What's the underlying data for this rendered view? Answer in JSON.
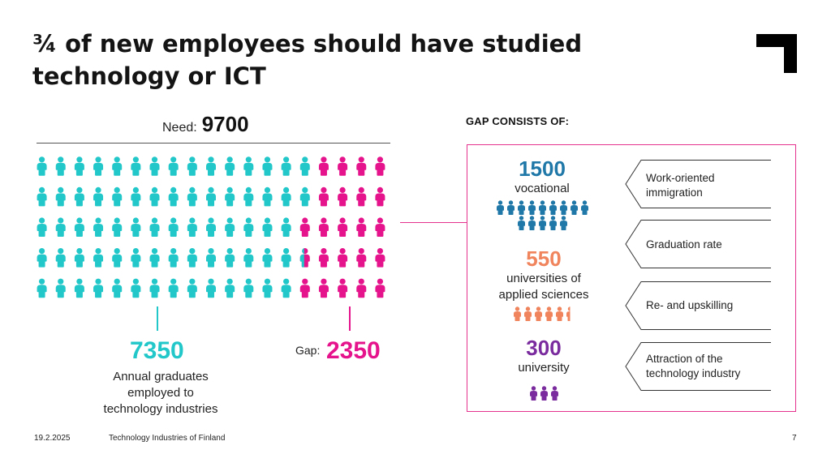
{
  "title": "¾ of new employees should have studied technology or ICT",
  "need": {
    "label": "Need:",
    "value": "9700"
  },
  "people_grid": {
    "rows": 5,
    "cols": 19,
    "primary_color": "#22c7c9",
    "gap_color": "#e6148c",
    "primary_per_row": [
      15,
      15,
      14,
      14.5,
      14
    ]
  },
  "graduates": {
    "value": "7350",
    "description": [
      "Annual graduates",
      "employed to",
      "technology industries"
    ],
    "color": "#22c7c9"
  },
  "gap": {
    "label": "Gap:",
    "value": "2350",
    "color": "#e6148c"
  },
  "gap_heading": "GAP CONSISTS OF:",
  "categories": [
    {
      "value": "1500",
      "label": [
        "vocational"
      ],
      "color": "#1f78a8",
      "icons": 14
    },
    {
      "value": "550",
      "label": [
        "universities of",
        "applied sciences"
      ],
      "color": "#f0845c",
      "icons": 5.5
    },
    {
      "value": "300",
      "label": [
        "university"
      ],
      "color": "#7a2c9e",
      "icons": 3
    }
  ],
  "measures": [
    [
      "Work-oriented",
      "immigration"
    ],
    [
      "Graduation rate"
    ],
    [
      "Re- and upskilling"
    ],
    [
      "Attraction of the",
      "technology industry"
    ]
  ],
  "footer": {
    "date": "19.2.2025",
    "org": "Technology Industries of Finland",
    "page": "7"
  }
}
